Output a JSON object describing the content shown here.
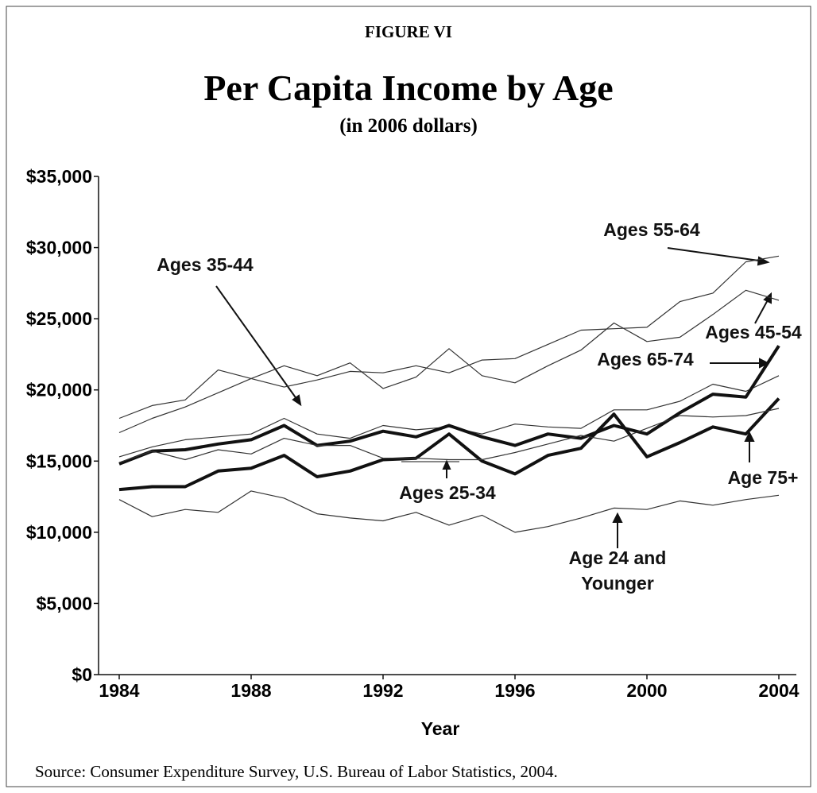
{
  "chart_data": {
    "type": "line",
    "figure_label": "FIGURE VI",
    "title": "Per Capita Income by Age",
    "subtitle": "(in 2006 dollars)",
    "x_label": "Year",
    "source": "Source:  Consumer Expenditure Survey, U.S. Bureau of Labor Statistics, 2004.",
    "x": [
      1984,
      1985,
      1986,
      1987,
      1988,
      1989,
      1990,
      1991,
      1992,
      1993,
      1994,
      1995,
      1996,
      1997,
      1998,
      1999,
      2000,
      2001,
      2002,
      2003,
      2004
    ],
    "xlim": [
      1984,
      2004
    ],
    "xticks": [
      1984,
      1988,
      1992,
      1996,
      2000,
      2004
    ],
    "ylim": [
      0,
      35000
    ],
    "yticks": [
      {
        "value": 0,
        "label": "$0"
      },
      {
        "value": 5000,
        "label": "$5,000"
      },
      {
        "value": 10000,
        "label": "$10,000"
      },
      {
        "value": 15000,
        "label": "$15,000"
      },
      {
        "value": 20000,
        "label": "$20,000"
      },
      {
        "value": 25000,
        "label": "$25,000"
      },
      {
        "value": 30000,
        "label": "$30,000"
      },
      {
        "value": 35000,
        "label": "$35,000"
      }
    ],
    "grid": false,
    "series": [
      {
        "name": "Ages 55-64",
        "color": "#333333",
        "style": "thin",
        "values": [
          18000,
          18900,
          19300,
          21400,
          20800,
          20200,
          20700,
          21300,
          21200,
          21700,
          21200,
          22100,
          22200,
          23200,
          24200,
          24300,
          24400,
          26200,
          26800,
          29000,
          29400
        ]
      },
      {
        "name": "Ages 35-44",
        "color": "#333333",
        "style": "thin",
        "values": [
          15300,
          16000,
          16500,
          16700,
          16900,
          18000,
          16900,
          16600,
          17500,
          17200,
          17400,
          16900,
          17600,
          17400,
          17300,
          18600,
          18600,
          19200,
          20400,
          19900,
          21000
        ]
      },
      {
        "name": "Ages 45-54",
        "color": "#333333",
        "style": "thin",
        "values": [
          17000,
          18000,
          18800,
          19800,
          20800,
          21700,
          21000,
          21900,
          20100,
          20900,
          22900,
          21000,
          20500,
          21700,
          22800,
          24700,
          23400,
          23700,
          25300,
          27000,
          26300
        ]
      },
      {
        "name": "Ages 65-74",
        "color": "#111111",
        "style": "bold",
        "values": [
          14800,
          15700,
          15800,
          16200,
          16500,
          17500,
          16100,
          16400,
          17100,
          16700,
          17500,
          16700,
          16100,
          16900,
          16600,
          17500,
          16900,
          18400,
          19700,
          19500,
          23100
        ]
      },
      {
        "name": "Age 75+",
        "color": "#111111",
        "style": "bold",
        "values": [
          13000,
          13200,
          13200,
          14300,
          14500,
          15400,
          13900,
          14300,
          15100,
          15200,
          16900,
          15000,
          14100,
          15400,
          15900,
          18300,
          15300,
          16300,
          17400,
          16900,
          19400
        ]
      },
      {
        "name": "Ages 25-34",
        "color": "#333333",
        "style": "thin",
        "values": [
          14900,
          15700,
          15100,
          15800,
          15500,
          16600,
          16100,
          16100,
          15200,
          15200,
          15100,
          15100,
          15600,
          16200,
          16800,
          16400,
          17300,
          18200,
          18100,
          18200,
          18700
        ]
      },
      {
        "name": "Age 24 and Younger",
        "color": "#333333",
        "style": "thin",
        "values": [
          12300,
          11100,
          11600,
          11400,
          12900,
          12400,
          11300,
          11000,
          10800,
          11400,
          10500,
          11200,
          10000,
          10400,
          11000,
          11700,
          11600,
          12200,
          11900,
          12300,
          12600
        ]
      }
    ]
  }
}
